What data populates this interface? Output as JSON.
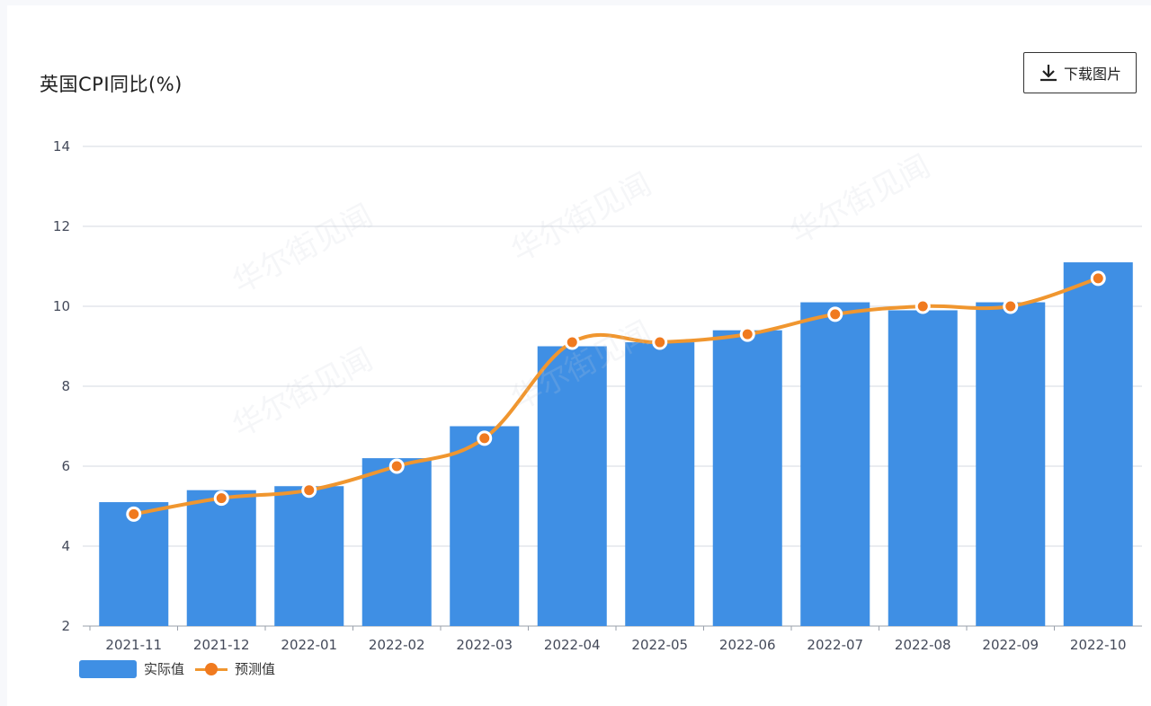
{
  "header": {
    "title": "英国CPI同比(%)",
    "download_label": "下载图片"
  },
  "watermark_text": "华尔街见闻",
  "colors": {
    "bar": "#3f8fe4",
    "line": "#f0962f",
    "point_fill": "#f07a1f",
    "grid": "#d4d8e0"
  },
  "chart_data": {
    "type": "bar",
    "title": "英国CPI同比(%)",
    "xlabel": "",
    "ylabel": "",
    "ylim": [
      2,
      14
    ],
    "yticks": [
      2,
      4,
      6,
      8,
      10,
      12,
      14
    ],
    "grid": true,
    "legend_position": "bottom-left",
    "categories": [
      "2021-11",
      "2021-12",
      "2022-01",
      "2022-02",
      "2022-03",
      "2022-04",
      "2022-05",
      "2022-06",
      "2022-07",
      "2022-08",
      "2022-09",
      "2022-10"
    ],
    "series": [
      {
        "name": "实际值",
        "type": "bar",
        "values": [
          5.1,
          5.4,
          5.5,
          6.2,
          7.0,
          9.0,
          9.1,
          9.4,
          10.1,
          9.9,
          10.1,
          11.1
        ]
      },
      {
        "name": "预测值",
        "type": "line",
        "values": [
          4.8,
          5.2,
          5.4,
          6.0,
          6.7,
          9.1,
          9.1,
          9.3,
          9.8,
          10.0,
          10.0,
          10.7
        ]
      }
    ]
  },
  "legend": {
    "items": [
      {
        "label": "实际值"
      },
      {
        "label": "预测值"
      }
    ]
  }
}
